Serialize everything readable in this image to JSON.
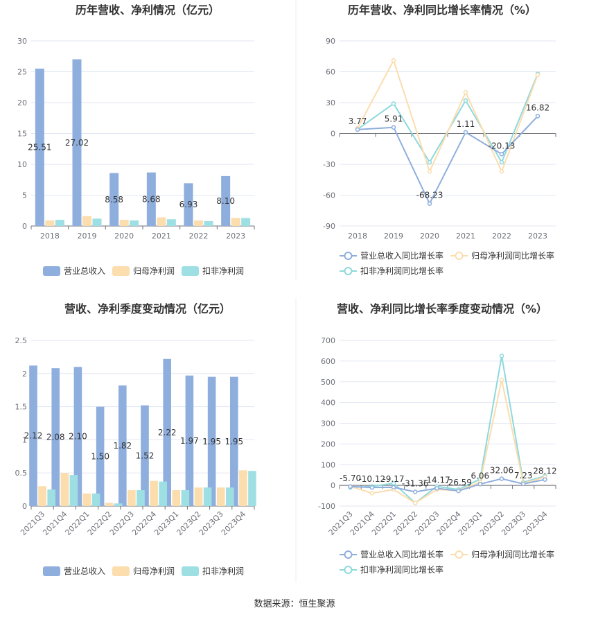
{
  "source": "数据来源：恒生聚源",
  "colors": {
    "revenue": "#8EAEDD",
    "net_profit": "#FBDDAE",
    "deducted_profit": "#9EDFE3",
    "line_revenue": "#8EAEDD",
    "line_net_profit": "#FBDDAE",
    "line_deducted": "#8ED9DC"
  },
  "chart_data": [
    {
      "type": "bar",
      "title": "历年营收、净利情况（亿元）",
      "categories": [
        "2018",
        "2019",
        "2020",
        "2021",
        "2022",
        "2023"
      ],
      "ylim": [
        0,
        30
      ],
      "yticks": [
        "0",
        "5",
        "10",
        "15",
        "20",
        "25",
        "30"
      ],
      "series": [
        {
          "name": "营业总收入",
          "values": [
            25.51,
            27.02,
            8.58,
            8.68,
            6.93,
            8.1
          ],
          "labels": [
            "25.51",
            "27.02",
            "8.58",
            "8.68",
            "6.93",
            "8.10"
          ]
        },
        {
          "name": "归母净利润",
          "values": [
            0.9,
            1.6,
            1.0,
            1.4,
            0.9,
            1.3
          ]
        },
        {
          "name": "扣非净利润",
          "values": [
            1.0,
            1.2,
            0.9,
            1.1,
            0.8,
            1.3
          ]
        }
      ],
      "legend": "bottom"
    },
    {
      "type": "line",
      "title": "历年营收、净利同比增长率情况（%）",
      "categories": [
        "2018",
        "2019",
        "2020",
        "2021",
        "2022",
        "2023"
      ],
      "ylim": [
        -90,
        90
      ],
      "yticks": [
        "-90",
        "-60",
        "-30",
        "0",
        "30",
        "60",
        "90"
      ],
      "series": [
        {
          "name": "营业总收入同比增长率",
          "values": [
            3.77,
            5.91,
            -68.23,
            1.11,
            -20.13,
            16.82
          ],
          "labels": [
            "3.77",
            "5.91",
            "-68.23",
            "1.11",
            "-20.13",
            "16.82"
          ]
        },
        {
          "name": "归母净利润同比增长率",
          "values": [
            5,
            71,
            -37,
            40,
            -37,
            57
          ]
        },
        {
          "name": "扣非净利润同比增长率",
          "values": [
            4,
            29,
            -28,
            32,
            -28,
            58
          ]
        }
      ],
      "legend": "bottom"
    },
    {
      "type": "bar",
      "title": "营收、净利季度变动情况（亿元）",
      "categories": [
        "2021Q3",
        "2021Q4",
        "2022Q1",
        "2022Q2",
        "2022Q3",
        "2022Q4",
        "2023Q1",
        "2023Q2",
        "2023Q3",
        "2023Q4"
      ],
      "ylim": [
        0,
        2.5
      ],
      "yticks": [
        "0",
        "0.5",
        "1",
        "1.5",
        "2",
        "2.5"
      ],
      "series": [
        {
          "name": "营业总收入",
          "values": [
            2.12,
            2.08,
            2.1,
            1.5,
            1.82,
            1.52,
            2.22,
            1.97,
            1.95,
            1.95
          ],
          "labels": [
            "2.12",
            "2.08",
            "2.10",
            "1.50",
            "1.82",
            "1.52",
            "2.22",
            "1.97",
            "1.95",
            "1.95"
          ]
        },
        {
          "name": "归母净利润",
          "values": [
            0.3,
            0.5,
            0.19,
            0.05,
            0.24,
            0.38,
            0.24,
            0.28,
            0.28,
            0.54
          ]
        },
        {
          "name": "扣非净利润",
          "values": [
            0.25,
            0.47,
            0.19,
            0.04,
            0.24,
            0.37,
            0.24,
            0.28,
            0.28,
            0.53
          ]
        }
      ],
      "legend": "bottom"
    },
    {
      "type": "line",
      "title": "营收、净利同比增长率季度变动情况（%）",
      "categories": [
        "2021Q3",
        "2021Q4",
        "2022Q1",
        "2022Q2",
        "2022Q3",
        "2022Q4",
        "2023Q1",
        "2023Q2",
        "2023Q3",
        "2023Q4"
      ],
      "ylim": [
        -100,
        700
      ],
      "yticks": [
        "-100",
        "0",
        "100",
        "200",
        "300",
        "400",
        "500",
        "600",
        "700"
      ],
      "series": [
        {
          "name": "营业总收入同比增长率",
          "values": [
            -5.7,
            -10.12,
            -9.17,
            -31.36,
            -14.17,
            -26.59,
            6.06,
            32.06,
            7.23,
            28.12
          ],
          "labels": [
            "-5.70",
            "-10.12",
            "-9.17",
            "-31.36",
            "-14.17",
            "-26.59",
            "6.06",
            "32.06",
            "7.23",
            "28.12"
          ]
        },
        {
          "name": "归母净利润同比增长率",
          "values": [
            -5,
            -38,
            -20,
            -85,
            -20,
            -25,
            15,
            510,
            10,
            40
          ]
        },
        {
          "name": "扣非净利润同比增长率",
          "values": [
            -10,
            -5,
            10,
            -85,
            -5,
            -20,
            30,
            625,
            15,
            45
          ]
        }
      ],
      "legend": "bottom"
    }
  ]
}
